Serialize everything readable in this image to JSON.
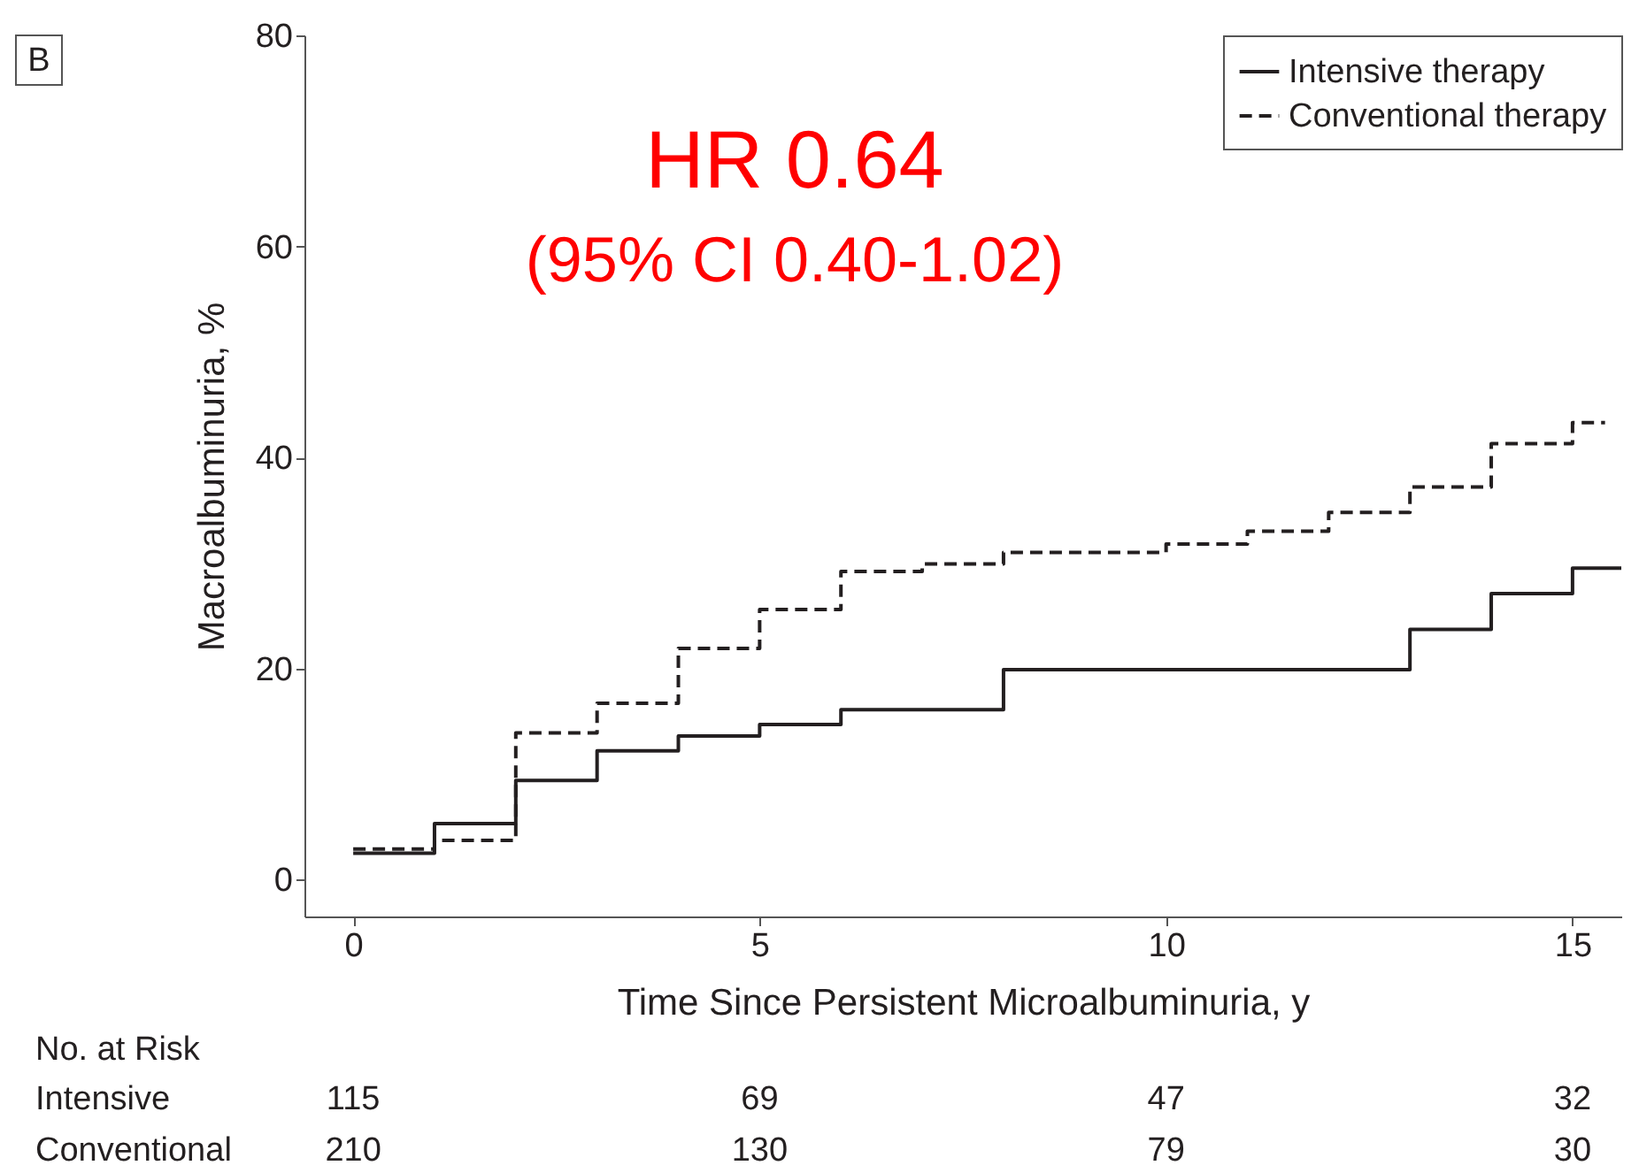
{
  "chart_data": {
    "type": "step",
    "xlabel": "Time Since Persistent Microalbuminuria, y",
    "ylabel": "Macroalbuminuria, %",
    "xlim": [
      -0.6,
      15.6
    ],
    "ylim": [
      -3.5,
      80
    ],
    "xticks": [
      0,
      5,
      10,
      15
    ],
    "yticks": [
      0,
      20,
      40,
      60,
      80
    ],
    "legend": "top right",
    "grid": false,
    "series": [
      {
        "name": "Intensive therapy",
        "color": "#231f20",
        "line_style": "solid",
        "x": [
          0,
          1,
          2,
          3,
          4,
          5,
          6,
          8,
          13,
          14,
          15,
          15.6
        ],
        "values": [
          2.5,
          5.3,
          9.4,
          12.2,
          13.6,
          14.7,
          16.1,
          19.9,
          23.7,
          27.1,
          29.5,
          29.5
        ]
      },
      {
        "name": "Conventional therapy",
        "color": "#231f20",
        "line_style": "dashed",
        "x": [
          0,
          1,
          2,
          3,
          4,
          5,
          6,
          7,
          8,
          10,
          11,
          12,
          13,
          14,
          15,
          15.4
        ],
        "values": [
          2.9,
          3.7,
          13.9,
          16.7,
          21.9,
          25.6,
          29.2,
          29.9,
          31.0,
          31.8,
          33.0,
          34.8,
          37.2,
          41.3,
          43.3,
          43.3
        ]
      }
    ],
    "annotations": [
      "B",
      "HR 0.64",
      "(95% CI 0.40-1.02)",
      "No. at Risk",
      "Intensive",
      "115",
      "69",
      "47",
      "32",
      "Conventional",
      "210",
      "130",
      "79",
      "30"
    ]
  }
}
